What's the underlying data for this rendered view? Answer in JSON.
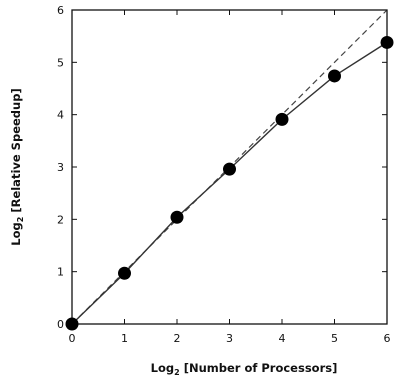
{
  "chart_data": {
    "type": "line",
    "xlabel": {
      "prefix": "Log",
      "sub": "2",
      "rest": " [Number of Processors]"
    },
    "ylabel": {
      "prefix": "Log",
      "sub": "2",
      "rest": " [Relative Speedup]"
    },
    "xlim": [
      0,
      6
    ],
    "ylim": [
      0,
      6
    ],
    "x_ticks": [
      "0",
      "1",
      "2",
      "3",
      "4",
      "5",
      "6"
    ],
    "y_ticks": [
      "0",
      "1",
      "2",
      "3",
      "4",
      "5",
      "6"
    ],
    "grid": false,
    "series": [
      {
        "style": "markers-with-line",
        "x": [
          0,
          1,
          2,
          3,
          4,
          5,
          6
        ],
        "y": [
          0,
          0.97,
          2.04,
          2.96,
          3.91,
          4.74,
          5.38
        ]
      },
      {
        "style": "dashed",
        "x": [
          0,
          6
        ],
        "y": [
          0,
          6
        ]
      }
    ],
    "colors": {
      "axis": "#111111",
      "marker": "#000000",
      "line": "#333333"
    }
  }
}
